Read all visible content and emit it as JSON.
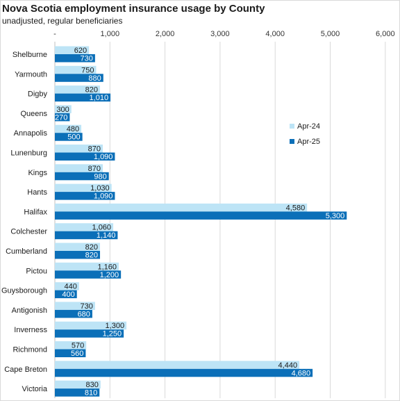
{
  "title": "Nova Scotia employment insurance usage by County",
  "subtitle": "unadjusted, regular beneficiaries",
  "colors": {
    "apr24": "#bde4f6",
    "apr25": "#0b6fb8",
    "grid": "#d9d9d9"
  },
  "chart_data": {
    "type": "bar",
    "orientation": "horizontal",
    "title": "Nova Scotia employment insurance usage by County",
    "subtitle": "unadjusted, regular beneficiaries",
    "xlim": [
      0,
      6000
    ],
    "x_ticks": [
      0,
      1000,
      2000,
      3000,
      4000,
      5000,
      6000
    ],
    "x_tick_labels": [
      "-",
      "1,000",
      "2,000",
      "3,000",
      "4,000",
      "5,000",
      "6,000"
    ],
    "grid": true,
    "legend_position": "right",
    "categories": [
      "Shelburne",
      "Yarmouth",
      "Digby",
      "Queens",
      "Annapolis",
      "Lunenburg",
      "Kings",
      "Hants",
      "Halifax",
      "Colchester",
      "Cumberland",
      "Pictou",
      "Guysborough",
      "Antigonish",
      "Inverness",
      "Richmond",
      "Cape Breton",
      "Victoria"
    ],
    "series": [
      {
        "name": "Apr-24",
        "values": [
          620,
          750,
          820,
          300,
          480,
          870,
          870,
          1030,
          4580,
          1060,
          820,
          1160,
          440,
          730,
          1300,
          570,
          4440,
          830
        ],
        "labels": [
          "620",
          "750",
          "820",
          "300",
          "480",
          "870",
          "870",
          "1,030",
          "4,580",
          "1,060",
          "820",
          "1,160",
          "440",
          "730",
          "1,300",
          "570",
          "4,440",
          "830"
        ]
      },
      {
        "name": "Apr-25",
        "values": [
          730,
          880,
          1010,
          270,
          500,
          1090,
          980,
          1090,
          5300,
          1140,
          820,
          1200,
          400,
          680,
          1250,
          560,
          4680,
          810
        ],
        "labels": [
          "730",
          "880",
          "1,010",
          "270",
          "500",
          "1,090",
          "980",
          "1,090",
          "5,300",
          "1,140",
          "820",
          "1,200",
          "400",
          "680",
          "1,250",
          "560",
          "4,680",
          "810"
        ]
      }
    ]
  }
}
